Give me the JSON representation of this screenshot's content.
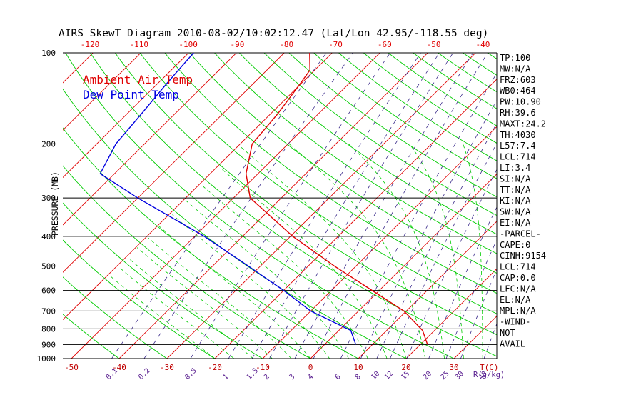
{
  "title": "AIRS SkewT Diagram 2010-08-02/10:02:12.47 (Lat/Lon 42.95/-118.55 deg)",
  "ylabel": "PRESSURE (MB)",
  "legend": [
    {
      "label": "Ambient Air Temp",
      "color": "#e00000"
    },
    {
      "label": "Dew Point Temp",
      "color": "#0000e0"
    }
  ],
  "top_temp_labels": [
    "-120",
    "-110",
    "-100",
    "-90",
    "-80",
    "-70",
    "-60",
    "-50",
    "-40"
  ],
  "bottom_temp_labels": [
    "-50",
    "-40",
    "-30",
    "-20",
    "-10",
    "0",
    "10",
    "20",
    "30"
  ],
  "bottom_temp_unit": "T(C)",
  "mixing_ratio_labels": [
    "0.1",
    "0.2",
    "0.5",
    "1",
    "1.5",
    "2",
    "3",
    "4",
    "6",
    "8",
    "10",
    "12",
    "15",
    "20",
    "25",
    "30",
    "40"
  ],
  "mixing_ratio_unit": "R(g/kg)",
  "pressure_labels": [
    "100",
    "200",
    "300",
    "400",
    "500",
    "600",
    "700",
    "800",
    "900",
    "1000"
  ],
  "stats": [
    "TP:100",
    "MW:N/A",
    "FRZ:603",
    "WB0:464",
    "PW:10.90",
    "RH:39.6",
    "MAXT:24.2",
    "TH:4030",
    "L57:7.4",
    "LCL:714",
    "LI:3.4",
    "SI:N/A",
    "TT:N/A",
    "KI:N/A",
    "SW:N/A",
    "EI:N/A",
    "-PARCEL-",
    "CAPE:0",
    "CINH:9154",
    "LCL:714",
    "CAP:0.0",
    "LFC:N/A",
    "EL:N/A",
    "MPL:N/A",
    "-WIND-",
    "NOT",
    "AVAIL"
  ],
  "colors": {
    "isotherm": "#e00000",
    "dry_adiabat": "#00cc00",
    "moist_adiabat": "#00cc00",
    "mixing_ratio": "#3a2a8a",
    "temperature": "#e00000",
    "dewpoint": "#0000e0",
    "isobar": "#000000",
    "bottom_labels": "#c00000",
    "top_labels": "#e00000",
    "mixing_labels": "#5a2090"
  },
  "chart_data": {
    "type": "line",
    "title": "AIRS SkewT Diagram 2010-08-02/10:02:12.47 (Lat/Lon 42.95/-118.55 deg)",
    "ylabel": "PRESSURE (MB)",
    "xlabel": "T(C)",
    "y_scale": "log",
    "ylim": [
      1000,
      100
    ],
    "xlim_bottom": [
      -52,
      40
    ],
    "isobars": [
      100,
      200,
      300,
      400,
      500,
      600,
      700,
      800,
      900,
      1000
    ],
    "series": [
      {
        "name": "Ambient Air Temp",
        "pressure": [
          900,
          810,
          700,
          600,
          500,
          400,
          300,
          250,
          200,
          160,
          130,
          115,
          100
        ],
        "temperature": [
          21.5,
          17.5,
          9.5,
          -1.5,
          -14.5,
          -29.5,
          -46.5,
          -52.5,
          -57.5,
          -58.5,
          -60,
          -61,
          -65
        ]
      },
      {
        "name": "Dew Point Temp",
        "pressure": [
          900,
          810,
          700,
          600,
          500,
          400,
          300,
          250,
          200,
          160,
          130,
          115,
          100
        ],
        "temperature": [
          6.5,
          2.5,
          -10,
          -20,
          -32.5,
          -48,
          -70,
          -83,
          -86,
          -87,
          -88,
          -88.5,
          -89
        ]
      }
    ]
  }
}
